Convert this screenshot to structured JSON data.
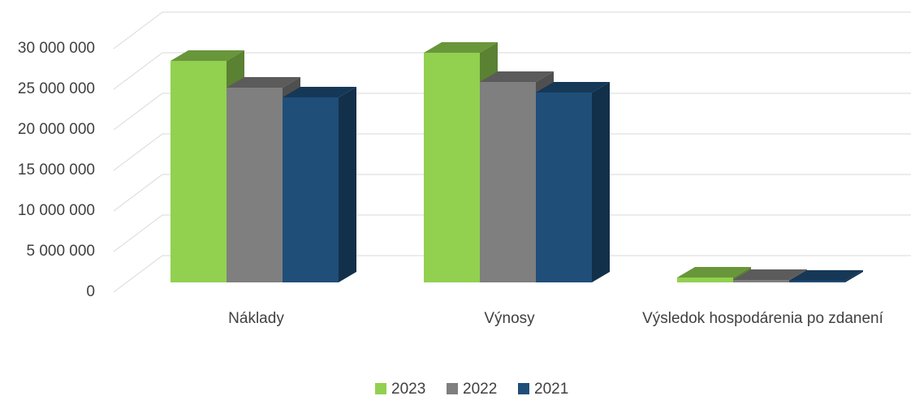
{
  "chart_data": {
    "type": "bar3d",
    "categories": [
      "Náklady",
      "Výnosy",
      "Výsledok hospodárenia po zdanení"
    ],
    "series": [
      {
        "name": "2023",
        "color": "#92d050",
        "values": [
          27300000,
          28300000,
          600000
        ]
      },
      {
        "name": "2022",
        "color": "#7f7f7f",
        "values": [
          24000000,
          24700000,
          300000
        ]
      },
      {
        "name": "2021",
        "color": "#1f4e79",
        "values": [
          22800000,
          23400000,
          200000
        ]
      }
    ],
    "ylim": [
      0,
      30000000
    ],
    "yticks": [
      {
        "value": 0,
        "label": "0"
      },
      {
        "value": 5000000,
        "label": "5 000 000"
      },
      {
        "value": 10000000,
        "label": "10 000 000"
      },
      {
        "value": 15000000,
        "label": "15 000 000"
      },
      {
        "value": 20000000,
        "label": "20 000 000"
      },
      {
        "value": 25000000,
        "label": "25 000 000"
      },
      {
        "value": 30000000,
        "label": "30 000 000"
      }
    ],
    "grid": true,
    "legend": "bottom"
  }
}
